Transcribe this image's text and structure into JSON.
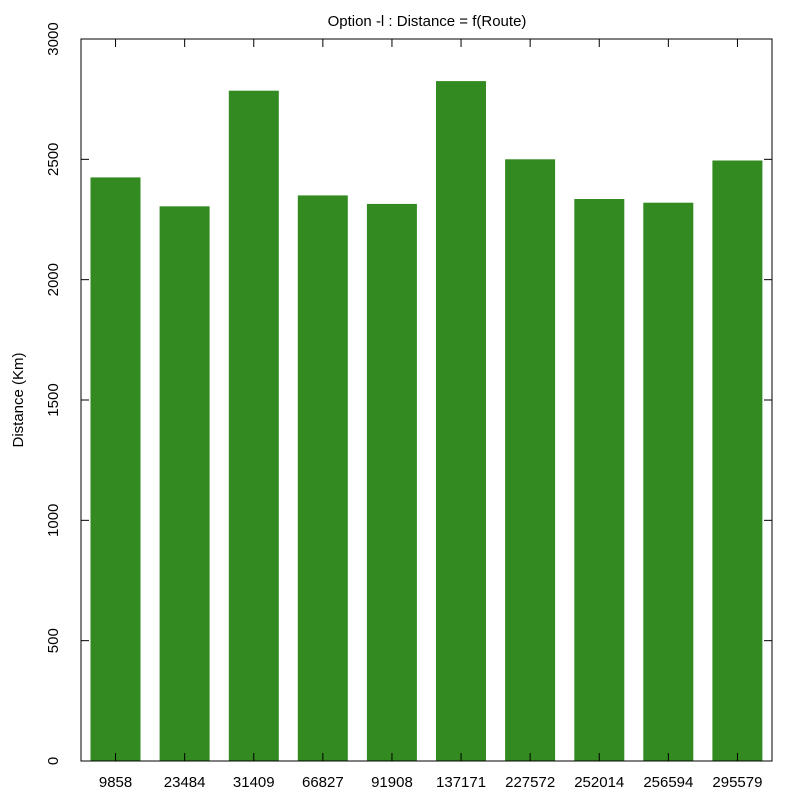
{
  "chart_data": {
    "type": "bar",
    "title": "Option -l : Distance = f(Route)",
    "xlabel": "",
    "ylabel": "Distance (Km)",
    "categories": [
      "9858",
      "23484",
      "31409",
      "66827",
      "91908",
      "137171",
      "227572",
      "252014",
      "256594",
      "295579"
    ],
    "values": [
      2425,
      2305,
      2785,
      2350,
      2315,
      2825,
      2500,
      2335,
      2320,
      2495
    ],
    "ylim": [
      0,
      3000
    ],
    "yticks": [
      0,
      500,
      1000,
      1500,
      2000,
      2500,
      3000
    ],
    "bar_color": "#328a20",
    "grid": false,
    "legend": "none"
  }
}
